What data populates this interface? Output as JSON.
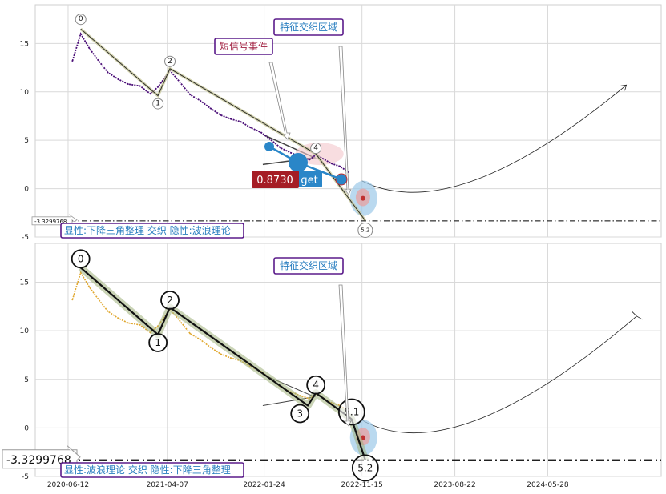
{
  "chart_data": [
    {
      "type": "line",
      "panel": "top",
      "title": "",
      "xlabel": "",
      "ylabel": "",
      "xlim": [
        "2020-03-05",
        "2025-05-05"
      ],
      "ylim": [
        -5,
        19
      ],
      "yticks": [
        -5,
        0,
        5,
        10,
        15
      ],
      "grid": true,
      "series": [
        {
          "color": "#4b0f78",
          "x": [
            "2020-06-25",
            "2020-07-20",
            "2020-08-15",
            "2020-09-10",
            "2020-10-10",
            "2020-11-10",
            "2020-12-10",
            "2021-01-15",
            "2021-02-15",
            "2021-03-10",
            "2021-04-15",
            "2021-05-15",
            "2021-06-15",
            "2021-07-15",
            "2021-08-15",
            "2021-09-15",
            "2021-10-15",
            "2021-11-15",
            "2021-12-15",
            "2022-01-15",
            "2022-02-15",
            "2022-03-15",
            "2022-04-15",
            "2022-05-15",
            "2022-06-10",
            "2022-06-29",
            "2022-07-20",
            "2022-08-15",
            "2022-09-10",
            "2022-10-05"
          ],
          "values": [
            13.2,
            16.0,
            14.5,
            13.3,
            12.0,
            11.3,
            10.8,
            10.6,
            9.8,
            10.5,
            12.2,
            11.0,
            9.7,
            9.1,
            8.3,
            7.6,
            7.2,
            6.9,
            6.3,
            5.8,
            5.0,
            4.2,
            3.7,
            3.3,
            3.0,
            3.5,
            3.1,
            2.6,
            2.3,
            1.7
          ]
        }
      ],
      "wave_points": [
        {
          "label": "0",
          "x": "2020-07-20",
          "y": 16.5
        },
        {
          "label": "1",
          "x": "2021-03-10",
          "y": 9.6
        },
        {
          "label": "2",
          "x": "2021-04-15",
          "y": 12.4
        },
        {
          "label": "4",
          "x": "2022-06-29",
          "y": 3.6
        },
        {
          "label": "5.2",
          "x": "2022-11-25",
          "y": -3.3
        }
      ],
      "h_level": -3.3299768,
      "h_level_label": "-3.3299768",
      "marker_value": "0.8730",
      "marker_label": "get",
      "annotations": [
        "特征交织区域",
        "短信号事件"
      ],
      "bottom_label": "显性:下降三角整理 交织 隐性:波浪理论"
    },
    {
      "type": "line",
      "panel": "bottom",
      "title": "",
      "xlabel": "",
      "ylabel": "",
      "xlim": [
        "2020-03-05",
        "2025-05-05"
      ],
      "ylim": [
        -5,
        19
      ],
      "yticks": [
        -5,
        0,
        5,
        10,
        15
      ],
      "xticks": [
        "2020-06-12",
        "2021-04-07",
        "2022-01-24",
        "2022-11-15",
        "2023-08-22",
        "2024-05-28"
      ],
      "grid": true,
      "series": [
        {
          "color": "#e0a830",
          "x": [
            "2020-06-25",
            "2020-07-20",
            "2020-08-15",
            "2020-09-10",
            "2020-10-10",
            "2020-11-10",
            "2020-12-10",
            "2021-01-15",
            "2021-02-15",
            "2021-03-10",
            "2021-04-15",
            "2021-05-15",
            "2021-06-15",
            "2021-07-15",
            "2021-08-15",
            "2021-09-15",
            "2021-10-15",
            "2021-11-15",
            "2021-12-15",
            "2022-01-15",
            "2022-02-15",
            "2022-03-15",
            "2022-04-15",
            "2022-05-15",
            "2022-06-10",
            "2022-06-29",
            "2022-07-20",
            "2022-08-15",
            "2022-09-10",
            "2022-10-05"
          ],
          "values": [
            13.2,
            16.0,
            14.5,
            13.3,
            12.0,
            11.3,
            10.8,
            10.6,
            9.8,
            10.5,
            12.2,
            11.0,
            9.7,
            9.1,
            8.3,
            7.6,
            7.2,
            6.9,
            6.3,
            5.8,
            5.0,
            4.2,
            3.7,
            3.3,
            3.0,
            3.5,
            3.1,
            2.6,
            2.3,
            1.7
          ]
        }
      ],
      "wave_points": [
        {
          "label": "0",
          "x": "2020-07-20",
          "y": 16.5
        },
        {
          "label": "1",
          "x": "2021-03-10",
          "y": 9.6
        },
        {
          "label": "2",
          "x": "2021-04-15",
          "y": 12.4
        },
        {
          "label": "3",
          "x": "2022-06-05",
          "y": 2.3
        },
        {
          "label": "4",
          "x": "2022-06-29",
          "y": 3.6
        },
        {
          "label": "5.1",
          "x": "2022-10-15",
          "y": 0.9
        },
        {
          "label": "5.2",
          "x": "2022-11-25",
          "y": -3.3
        }
      ],
      "h_level": -3.3299768,
      "h_level_label": "-3.3299768",
      "annotations": [
        "特征交织区域"
      ],
      "bottom_label": "显性:波浪理论 交织 隐性:下降三角整理"
    }
  ],
  "colors": {
    "annotation_text": "#2a7fc0",
    "annotation_border": "#5a1a8a",
    "short_signal_text": "#a02040",
    "marker_red": "#a51c24",
    "marker_blue": "#2a86c8"
  }
}
